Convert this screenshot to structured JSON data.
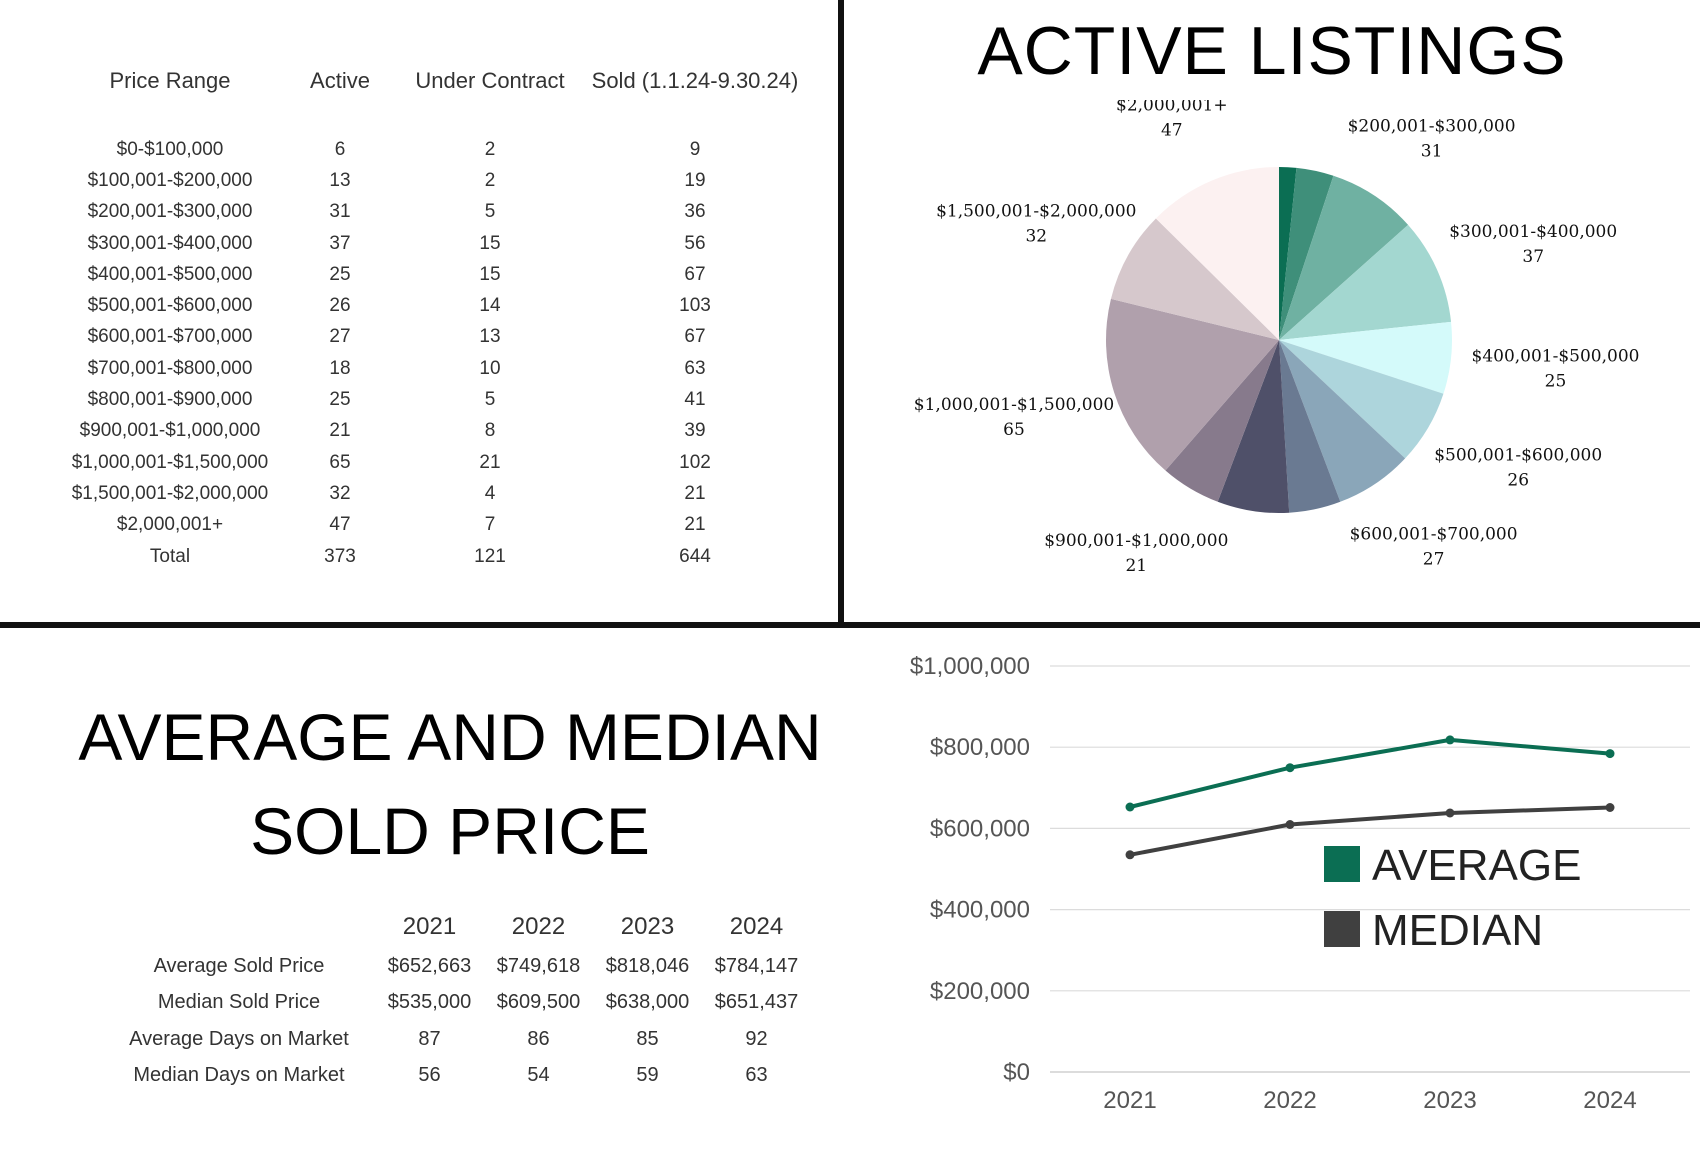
{
  "listings_table": {
    "headers": [
      "Price Range",
      "Active",
      "Under Contract",
      "Sold (1.1.24-9.30.24)"
    ],
    "rows": [
      [
        "$0-$100,000",
        "6",
        "2",
        "9"
      ],
      [
        "$100,001-$200,000",
        "13",
        "2",
        "19"
      ],
      [
        "$200,001-$300,000",
        "31",
        "5",
        "36"
      ],
      [
        "$300,001-$400,000",
        "37",
        "15",
        "56"
      ],
      [
        "$400,001-$500,000",
        "25",
        "15",
        "67"
      ],
      [
        "$500,001-$600,000",
        "26",
        "14",
        "103"
      ],
      [
        "$600,001-$700,000",
        "27",
        "13",
        "67"
      ],
      [
        "$700,001-$800,000",
        "18",
        "10",
        "63"
      ],
      [
        "$800,001-$900,000",
        "25",
        "5",
        "41"
      ],
      [
        "$900,001-$1,000,000",
        "21",
        "8",
        "39"
      ],
      [
        "$1,000,001-$1,500,000",
        "65",
        "21",
        "102"
      ],
      [
        "$1,500,001-$2,000,000",
        "32",
        "4",
        "21"
      ],
      [
        "$2,000,001+",
        "47",
        "7",
        "21"
      ],
      [
        "Total",
        "373",
        "121",
        "644"
      ]
    ]
  },
  "summary_table": {
    "years": [
      "2021",
      "2022",
      "2023",
      "2024"
    ],
    "rows": [
      {
        "label": "Average Sold Price",
        "values": [
          "$652,663",
          "$749,618",
          "$818,046",
          "$784,147"
        ]
      },
      {
        "label": "Median Sold Price",
        "values": [
          "$535,000",
          "$609,500",
          "$638,000",
          "$651,437"
        ]
      },
      {
        "label": "Average Days on Market",
        "values": [
          "87",
          "86",
          "85",
          "92"
        ]
      },
      {
        "label": "Median Days on Market",
        "values": [
          "56",
          "54",
          "59",
          "63"
        ]
      }
    ]
  },
  "titles": {
    "pie_title": "ACTIVE LISTINGS",
    "line_title_line1": "AVERAGE AND MEDIAN",
    "line_title_line2": "SOLD PRICE"
  },
  "chart_data": [
    {
      "type": "pie",
      "title": "ACTIVE LISTINGS",
      "slices": [
        {
          "label": "$0-$100,000",
          "value": 6,
          "color": "#0b6e53",
          "show_label": false
        },
        {
          "label": "$100,001-$200,000",
          "value": 13,
          "color": "#3f8f7a",
          "show_label": false
        },
        {
          "label": "$200,001-$300,000",
          "value": 31,
          "color": "#6fb1a2",
          "show_label": true
        },
        {
          "label": "$300,001-$400,000",
          "value": 37,
          "color": "#a3d7d0",
          "show_label": true
        },
        {
          "label": "$400,001-$500,000",
          "value": 25,
          "color": "#d4fafa",
          "show_label": true
        },
        {
          "label": "$500,001-$600,000",
          "value": 26,
          "color": "#add5dc",
          "show_label": true
        },
        {
          "label": "$600,001-$700,000",
          "value": 27,
          "color": "#8aa6b9",
          "show_label": true
        },
        {
          "label": "$700,001-$800,000",
          "value": 18,
          "color": "#6a7a92",
          "show_label": false
        },
        {
          "label": "$800,001-$900,000",
          "value": 25,
          "color": "#4f5069",
          "show_label": false
        },
        {
          "label": "$900,001-$1,000,000",
          "value": 21,
          "color": "#877a8c",
          "show_label": true
        },
        {
          "label": "$1,000,001-$1,500,000",
          "value": 65,
          "color": "#b0a0ac",
          "show_label": true
        },
        {
          "label": "$1,500,001-$2,000,000",
          "value": 32,
          "color": "#d6c8cc",
          "show_label": true
        },
        {
          "label": "$2,000,001+",
          "value": 47,
          "color": "#fcf1f1",
          "show_label": true
        }
      ]
    },
    {
      "type": "line",
      "title": "",
      "x": [
        "2021",
        "2022",
        "2023",
        "2024"
      ],
      "ylim": [
        0,
        1000000
      ],
      "yticks": [
        0,
        200000,
        400000,
        600000,
        800000,
        1000000
      ],
      "ytick_labels": [
        "$0",
        "$200,000",
        "$400,000",
        "$600,000",
        "$800,000",
        "$1,000,000"
      ],
      "grid": true,
      "legend_position": "bottom-right",
      "series": [
        {
          "name": "AVERAGE",
          "values": [
            652663,
            749618,
            818046,
            784147
          ],
          "color": "#0b6e53"
        },
        {
          "name": "MEDIAN",
          "values": [
            535000,
            609500,
            638000,
            651437
          ],
          "color": "#404040"
        }
      ]
    }
  ]
}
